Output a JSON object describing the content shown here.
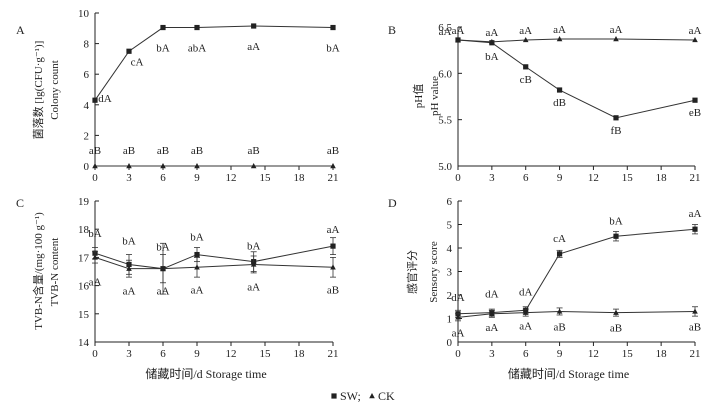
{
  "chart_data": [
    {
      "type": "line",
      "panel_label": "A",
      "ylabel_cn": "菌落数 [lg(CFU·g⁻¹)]",
      "ylabel_en": "Colony count",
      "xlabel": "",
      "x": [
        0,
        3,
        6,
        9,
        14,
        21
      ],
      "xticks": [
        0,
        3,
        6,
        9,
        12,
        15,
        18,
        21
      ],
      "xlim": [
        0,
        21
      ],
      "ylim": [
        0,
        10
      ],
      "yticks": [
        0,
        2,
        4,
        6,
        8,
        10
      ],
      "series": [
        {
          "name": "SW",
          "marker": "square",
          "values": [
            4.3,
            7.5,
            9.05,
            9.05,
            9.15,
            9.05
          ],
          "errors": [
            0,
            0,
            0,
            0,
            0,
            0
          ],
          "labels": [
            "dA",
            "cA",
            "bA",
            "abA",
            "aA",
            "bA"
          ]
        },
        {
          "name": "CK",
          "marker": "triangle",
          "values": [
            0,
            0,
            0,
            0,
            0,
            0
          ],
          "errors": [
            0,
            0,
            0,
            0,
            0,
            0
          ],
          "labels": [
            "aB",
            "aB",
            "aB",
            "aB",
            "aB",
            "aB"
          ]
        }
      ]
    },
    {
      "type": "line",
      "panel_label": "B",
      "ylabel_cn": "pH值",
      "ylabel_en": "pH value",
      "xlabel": "",
      "x": [
        0,
        3,
        6,
        9,
        14,
        21
      ],
      "xticks": [
        0,
        3,
        6,
        9,
        12,
        15,
        18,
        21
      ],
      "xlim": [
        0,
        21
      ],
      "ylim": [
        5.0,
        6.5
      ],
      "yticks": [
        5.0,
        5.5,
        6.0,
        6.5
      ],
      "series": [
        {
          "name": "SW",
          "marker": "square",
          "values": [
            6.36,
            6.33,
            6.07,
            5.82,
            5.52,
            5.71
          ],
          "errors": [
            0,
            0,
            0,
            0,
            0,
            0
          ],
          "labels": [
            "aA",
            "bA",
            "cB",
            "dB",
            "fB",
            "eB"
          ]
        },
        {
          "name": "CK",
          "marker": "triangle",
          "values": [
            6.36,
            6.34,
            6.36,
            6.37,
            6.37,
            6.36
          ],
          "errors": [
            0,
            0,
            0,
            0,
            0,
            0
          ],
          "labels": [
            "aA",
            "aA",
            "aA",
            "aA",
            "aA",
            "aA"
          ]
        }
      ]
    },
    {
      "type": "line",
      "panel_label": "C",
      "ylabel_cn": "TVB-N含量/(mg·100 g⁻¹)",
      "ylabel_en": "TVB-N content",
      "xlabel": "储藏时间/d  Storage time",
      "x": [
        0,
        3,
        6,
        9,
        14,
        21
      ],
      "xticks": [
        0,
        3,
        6,
        9,
        12,
        15,
        18,
        21
      ],
      "xlim": [
        0,
        21
      ],
      "ylim": [
        14,
        19
      ],
      "yticks": [
        14,
        15,
        16,
        17,
        18,
        19
      ],
      "series": [
        {
          "name": "SW",
          "marker": "square",
          "values": [
            17.15,
            16.75,
            16.6,
            17.1,
            16.85,
            17.4
          ],
          "errors": [
            0.2,
            0.35,
            0.9,
            0.25,
            0.35,
            0.3
          ],
          "labels": [
            "bA",
            "bA",
            "bA",
            "bA",
            "bA",
            "aA"
          ]
        },
        {
          "name": "CK",
          "marker": "triangle",
          "values": [
            17.0,
            16.6,
            16.6,
            16.65,
            16.75,
            16.65
          ],
          "errors": [
            0.2,
            0.3,
            0.5,
            0.35,
            0.3,
            0.35
          ],
          "labels": [
            "aA",
            "aA",
            "aA",
            "aA",
            "aA",
            "aB"
          ]
        }
      ]
    },
    {
      "type": "line",
      "panel_label": "D",
      "ylabel_cn": "感官评分",
      "ylabel_en": "Sensory score",
      "xlabel": "储藏时间/d  Storage time",
      "x": [
        0,
        3,
        6,
        9,
        14,
        21
      ],
      "xticks": [
        0,
        3,
        6,
        9,
        12,
        15,
        18,
        21
      ],
      "xlim": [
        0,
        21
      ],
      "ylim": [
        0,
        6
      ],
      "yticks": [
        0,
        1,
        2,
        3,
        4,
        5,
        6
      ],
      "series": [
        {
          "name": "SW",
          "marker": "square",
          "values": [
            1.2,
            1.25,
            1.35,
            3.75,
            4.5,
            4.8
          ],
          "errors": [
            0.15,
            0.15,
            0.15,
            0.15,
            0.2,
            0.2
          ],
          "labels": [
            "dA",
            "dA",
            "dA",
            "cA",
            "bA",
            "aA"
          ]
        },
        {
          "name": "CK",
          "marker": "triangle",
          "values": [
            1.05,
            1.2,
            1.25,
            1.3,
            1.25,
            1.3
          ],
          "errors": [
            0.15,
            0.15,
            0.15,
            0.15,
            0.15,
            0.2
          ],
          "labels": [
            "aA",
            "aA",
            "aA",
            "aB",
            "aB",
            "aB"
          ]
        }
      ]
    }
  ],
  "legend": {
    "items": [
      {
        "marker": "square",
        "label": "SW;"
      },
      {
        "marker": "triangle",
        "label": "CK"
      }
    ]
  }
}
